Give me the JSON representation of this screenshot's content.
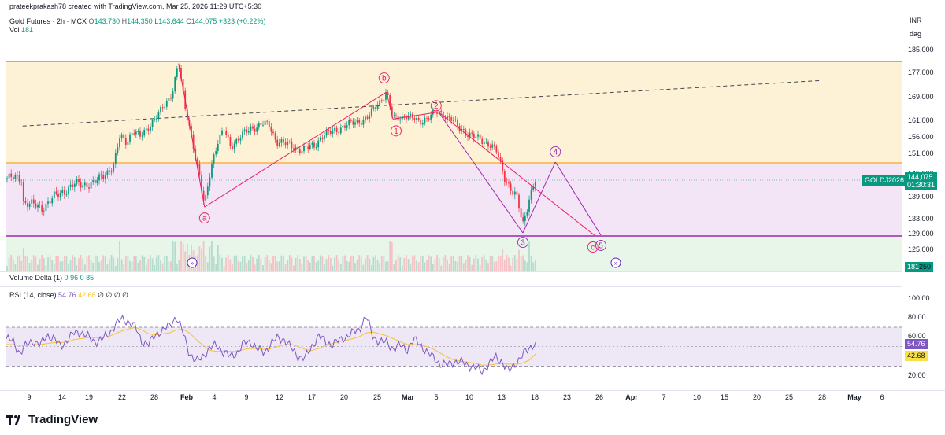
{
  "header": {
    "attribution": "prateekprakash78 created with TradingView.com, Mar 25, 2026 11:29 UTC+5:30",
    "symbol": "Gold Futures · 2h · MCX",
    "open_label": "O",
    "open": "143,730",
    "high_label": "H",
    "high": "144,350",
    "low_label": "L",
    "low": "143,644",
    "close_label": "C",
    "close": "144,075",
    "change": "+323 (+0.22%)",
    "vol_label": "Vol",
    "vol": "181"
  },
  "currency": "INR",
  "unit": "dag",
  "price_axis": [
    "185,000",
    "177,000",
    "169,000",
    "161,000",
    "156,000",
    "151,000",
    "145,000",
    "139,000",
    "133,000",
    "129,000",
    "125,000"
  ],
  "price_tags": {
    "symbol_tag": "GOLDJ2026",
    "last_price": "144,075",
    "countdown": "01:30:31",
    "volume_tag": "181",
    "volume_tag_suffix": "250"
  },
  "volume_delta": {
    "label": "Volume Delta (1)",
    "v1": "0",
    "v2": "96",
    "v3": "0",
    "v4": "85"
  },
  "rsi": {
    "label": "RSI (14, close)",
    "value": "54.76",
    "ma": "42.68",
    "extras": "∅ ∅ ∅ ∅",
    "axis": [
      "100.00",
      "80.00",
      "60.00",
      "20.00"
    ],
    "colors": {
      "rsi": "#7e57c2",
      "ma": "#fbc02d",
      "tag_rsi": "#7e57c2",
      "tag_ma": "#f7e048"
    }
  },
  "time_axis": [
    {
      "label": "9",
      "x": 37,
      "bold": false
    },
    {
      "label": "14",
      "x": 79,
      "bold": false
    },
    {
      "label": "19",
      "x": 113,
      "bold": false
    },
    {
      "label": "22",
      "x": 155,
      "bold": false
    },
    {
      "label": "28",
      "x": 196,
      "bold": false
    },
    {
      "label": "Feb",
      "x": 237,
      "bold": true
    },
    {
      "label": "4",
      "x": 272,
      "bold": false
    },
    {
      "label": "9",
      "x": 313,
      "bold": false
    },
    {
      "label": "12",
      "x": 355,
      "bold": false
    },
    {
      "label": "17",
      "x": 396,
      "bold": false
    },
    {
      "label": "20",
      "x": 437,
      "bold": false
    },
    {
      "label": "25",
      "x": 479,
      "bold": false
    },
    {
      "label": "Mar",
      "x": 518,
      "bold": true
    },
    {
      "label": "5",
      "x": 554,
      "bold": false
    },
    {
      "label": "10",
      "x": 596,
      "bold": false
    },
    {
      "label": "13",
      "x": 637,
      "bold": false
    },
    {
      "label": "18",
      "x": 679,
      "bold": false
    },
    {
      "label": "23",
      "x": 720,
      "bold": false
    },
    {
      "label": "26",
      "x": 761,
      "bold": false
    },
    {
      "label": "Apr",
      "x": 802,
      "bold": true
    },
    {
      "label": "7",
      "x": 843,
      "bold": false
    },
    {
      "label": "10",
      "x": 885,
      "bold": false
    },
    {
      "label": "15",
      "x": 920,
      "bold": false
    },
    {
      "label": "20",
      "x": 961,
      "bold": false
    },
    {
      "label": "25",
      "x": 1002,
      "bold": false
    },
    {
      "label": "28",
      "x": 1044,
      "bold": false
    },
    {
      "label": "May",
      "x": 1085,
      "bold": true
    },
    {
      "label": "6",
      "x": 1120,
      "bold": false
    }
  ],
  "wave_labels": [
    "a",
    "b",
    "1",
    "2",
    "3",
    "4",
    "c",
    "5"
  ],
  "watermark": "TradingView",
  "colors": {
    "up": "#089981",
    "down": "#f23645",
    "resistance": "#26c6da",
    "support": "#9c27b0",
    "mid_level": "#f9a825",
    "zone_top": "#fdf1d6",
    "zone_mid": "#f3e5f5",
    "zone_bottom": "#e8f5e9",
    "wave_line": "#e91e63",
    "projection_line": "#9c27b0",
    "trendline": "#434651"
  },
  "chart_data": [
    {
      "type": "candlestick",
      "title": "Gold Futures · 2h · MCX",
      "x_start": "2026-01-05",
      "x_end": "2026-05-08",
      "ylim": [
        122000,
        188000
      ],
      "unit": "INR",
      "levels": {
        "resistance": 180400,
        "mid": 148700,
        "support": 128800
      },
      "trendline": [
        [
          "2026-01-05",
          159500
        ],
        [
          "2026-05-08",
          174600
        ]
      ],
      "close_path": [
        [
          "2026-01-05",
          137800
        ],
        [
          "2026-01-08",
          136200
        ],
        [
          "2026-01-10",
          139300
        ],
        [
          "2026-01-13",
          142400
        ],
        [
          "2026-01-16",
          142600
        ],
        [
          "2026-01-19",
          147500
        ],
        [
          "2026-01-20",
          156400
        ],
        [
          "2026-01-21",
          155000
        ],
        [
          "2026-01-22",
          158200
        ],
        [
          "2026-01-23",
          156000
        ],
        [
          "2026-01-26",
          163400
        ],
        [
          "2026-01-28",
          170600
        ],
        [
          "2026-01-29",
          180400
        ],
        [
          "2026-01-30",
          165400
        ],
        [
          "2026-01-31",
          156600
        ],
        [
          "2026-02-02",
          136400
        ],
        [
          "2026-02-03",
          147700
        ],
        [
          "2026-02-04",
          154500
        ],
        [
          "2026-02-05",
          158300
        ],
        [
          "2026-02-06",
          153600
        ],
        [
          "2026-02-09",
          158700
        ],
        [
          "2026-02-11",
          160200
        ],
        [
          "2026-02-12",
          159500
        ],
        [
          "2026-02-13",
          155200
        ],
        [
          "2026-02-17",
          152200
        ],
        [
          "2026-02-19",
          153800
        ],
        [
          "2026-02-20",
          156400
        ],
        [
          "2026-02-24",
          159900
        ],
        [
          "2026-02-27",
          161900
        ],
        [
          "2026-03-02",
          170800
        ],
        [
          "2026-03-03",
          161700
        ],
        [
          "2026-03-05",
          162900
        ],
        [
          "2026-03-07",
          160800
        ],
        [
          "2026-03-10",
          164100
        ],
        [
          "2026-03-12",
          161700
        ],
        [
          "2026-03-13",
          159100
        ],
        [
          "2026-03-16",
          155700
        ],
        [
          "2026-03-18",
          154000
        ],
        [
          "2026-03-19",
          151600
        ],
        [
          "2026-03-20",
          144900
        ],
        [
          "2026-03-21",
          141800
        ],
        [
          "2026-03-22",
          139100
        ],
        [
          "2026-03-23",
          131400
        ],
        [
          "2026-03-24",
          139300
        ],
        [
          "2026-03-25",
          144075
        ]
      ],
      "wave_points": [
        {
          "label": "a",
          "date": "2026-02-02",
          "price": 136400
        },
        {
          "label": "b",
          "date": "2026-03-02",
          "price": 170800
        },
        {
          "label": "1",
          "date": "2026-03-03",
          "price": 161700
        },
        {
          "label": "2",
          "date": "2026-03-10",
          "price": 164100
        },
        {
          "label": "3",
          "date": "2026-03-23",
          "price": 129400
        },
        {
          "label": "4",
          "date": "2026-03-28",
          "price": 148700
        },
        {
          "label": "c",
          "date": "2026-04-03",
          "price": 128800
        },
        {
          "label": "5",
          "date": "2026-04-04",
          "price": 128800
        }
      ]
    },
    {
      "type": "line",
      "title": "RSI (14, close)",
      "x_start": "2026-01-05",
      "x_end": "2026-03-25",
      "ylim": [
        0,
        100
      ],
      "bands": [
        70,
        30
      ],
      "series": [
        {
          "name": "RSI",
          "values": [
            58,
            55,
            43,
            52,
            56,
            51,
            62,
            58,
            50,
            57,
            64,
            65,
            60,
            55,
            57,
            62,
            72,
            79,
            76,
            70,
            55,
            52,
            63,
            66,
            72,
            81,
            65,
            43,
            34,
            41,
            48,
            52,
            44,
            40,
            44,
            53,
            55,
            47,
            44,
            53,
            59,
            57,
            48,
            40,
            38,
            50,
            61,
            55,
            52,
            56,
            60,
            64,
            68,
            82,
            60,
            55,
            54,
            48,
            51,
            47,
            57,
            52,
            44,
            38,
            32,
            31,
            35,
            34,
            31,
            29,
            24,
            32,
            39,
            35,
            24,
            33,
            41,
            48,
            55
          ]
        },
        {
          "name": "MA",
          "values": [
            52,
            52,
            51,
            51,
            52,
            52,
            53,
            54,
            54,
            55,
            57,
            58,
            59,
            59,
            59,
            60,
            63,
            66,
            68,
            70,
            67,
            63,
            62,
            63,
            64,
            67,
            68,
            64,
            57,
            51,
            46,
            45,
            45,
            45,
            45,
            47,
            48,
            48,
            47,
            48,
            50,
            52,
            52,
            50,
            47,
            46,
            48,
            51,
            53,
            55,
            56,
            58,
            60,
            64,
            65,
            63,
            61,
            58,
            55,
            52,
            52,
            51,
            50,
            47,
            43,
            39,
            36,
            35,
            34,
            33,
            31,
            31,
            32,
            33,
            32,
            32,
            33,
            36,
            42.68
          ]
        }
      ]
    }
  ]
}
